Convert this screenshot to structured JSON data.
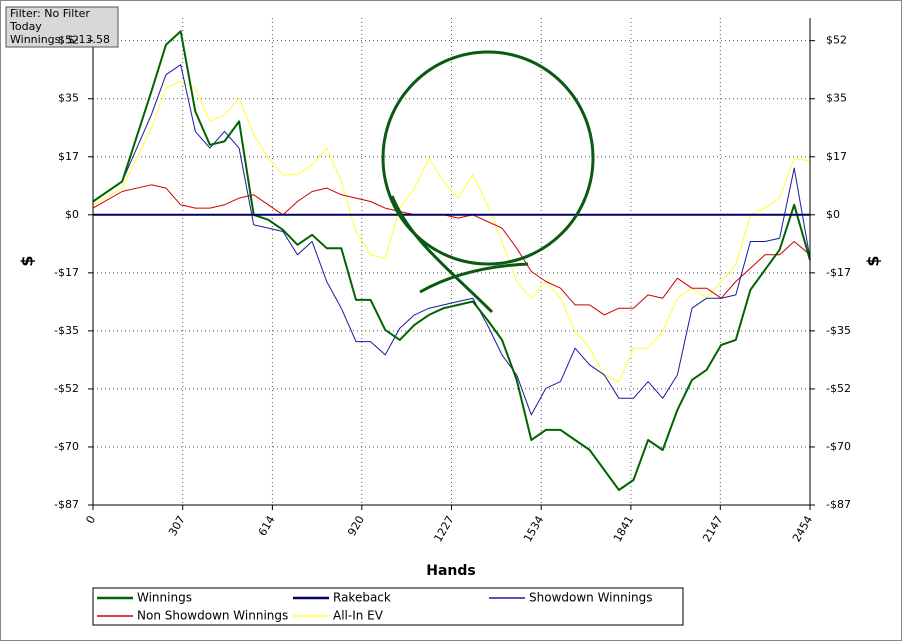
{
  "chart_data": {
    "type": "line",
    "info_box": [
      "Filter: No Filter",
      "Today",
      "Winnings: $-13.58"
    ],
    "x_label": "Hands",
    "y_label": "$",
    "x": [
      0,
      100,
      200,
      250,
      300,
      350,
      400,
      450,
      500,
      550,
      600,
      650,
      700,
      750,
      800,
      850,
      900,
      950,
      1000,
      1050,
      1100,
      1150,
      1200,
      1250,
      1300,
      1350,
      1400,
      1450,
      1500,
      1550,
      1600,
      1650,
      1700,
      1750,
      1800,
      1850,
      1900,
      1950,
      2000,
      2050,
      2100,
      2150,
      2200,
      2250,
      2300,
      2350,
      2400,
      2454
    ],
    "series": [
      {
        "name": "Winnings",
        "color": "#006400",
        "width": 2,
        "values": [
          4,
          10,
          37,
          51,
          55,
          31,
          21,
          22,
          28,
          0,
          -1.5,
          -4.5,
          -9,
          -6,
          -10,
          -10,
          -25.5,
          -25.5,
          -34.5,
          -37.5,
          -33,
          -30,
          -28,
          -27,
          -26,
          -31.5,
          -37.5,
          -49.5,
          -67.5,
          -64.5,
          -64.5,
          -67.5,
          -70.5,
          -76.5,
          -82.5,
          -79.5,
          -67.5,
          -70.5,
          -58.5,
          -49.5,
          -46.5,
          -39,
          -37.5,
          -22.5,
          -16.5,
          -10.5,
          3,
          -13.58
        ]
      },
      {
        "name": "Rakeback",
        "color": "#000066",
        "width": 2,
        "values": [
          0,
          0,
          0,
          0,
          0,
          0,
          0,
          0,
          0,
          0,
          0,
          0,
          0,
          0,
          0,
          0,
          0,
          0,
          0,
          0,
          0,
          0,
          0,
          0,
          0,
          0,
          0,
          0,
          0,
          0,
          0,
          0,
          0,
          0,
          0,
          0,
          0,
          0,
          0,
          0,
          0,
          0,
          0,
          0,
          0,
          0,
          0,
          0
        ]
      },
      {
        "name": "Showdown Winnings",
        "color": "#1a1aa0",
        "width": 1,
        "values": [
          4,
          10,
          30,
          42,
          45,
          25,
          20,
          25,
          20,
          -3,
          -4,
          -5,
          -12,
          -8,
          -20,
          -28,
          -38,
          -38,
          -42,
          -34,
          -30,
          -28,
          -27,
          -26,
          -25,
          -33,
          -42,
          -48,
          -60,
          -52,
          -50,
          -40,
          -45,
          -48,
          -55,
          -55,
          -50,
          -55,
          -48,
          -28,
          -25,
          -25,
          -24,
          -8,
          -8,
          -7,
          14,
          -13
        ]
      },
      {
        "name": "Non Showdown Winnings",
        "color": "#cc0000",
        "width": 1,
        "values": [
          2,
          7,
          9,
          8,
          3,
          2,
          2,
          3,
          5,
          6,
          3,
          0,
          4,
          7,
          8,
          6,
          5,
          4,
          2,
          1,
          0,
          0,
          0,
          -1,
          0,
          -2,
          -4,
          -10,
          -17,
          -20,
          -22,
          -27,
          -27,
          -30,
          -28,
          -28,
          -24,
          -25,
          -19,
          -22,
          -22,
          -25,
          -20,
          -16,
          -12,
          -12,
          -8,
          -12
        ]
      },
      {
        "name": "All-In EV",
        "color": "#ffff33",
        "width": 1,
        "values": [
          3,
          8,
          26,
          38,
          40,
          38,
          28,
          30,
          35,
          24,
          17,
          12,
          12,
          15,
          20,
          10,
          -5,
          -12,
          -13,
          2,
          8,
          17,
          10,
          5,
          12,
          3,
          -8,
          -20,
          -25,
          -20,
          -25,
          -35,
          -40,
          -48,
          -50,
          -40,
          -40,
          -35,
          -25,
          -22,
          -25,
          -20,
          -15,
          0,
          2,
          5,
          17,
          16
        ]
      }
    ],
    "xlim": [
      0,
      2454
    ],
    "xticks": [
      0,
      307,
      614,
      920,
      1227,
      1534,
      1841,
      2147,
      2454
    ],
    "ylim": [
      -87,
      59
    ],
    "yticks": [
      {
        "value": 52.2,
        "label": "$52"
      },
      {
        "value": 34.8,
        "label": "$35"
      },
      {
        "value": 17.4,
        "label": "$17"
      },
      {
        "value": 0,
        "label": "$0"
      },
      {
        "value": -17.4,
        "label": "-$17"
      },
      {
        "value": -34.8,
        "label": "-$35"
      },
      {
        "value": -52.2,
        "label": "-$52"
      },
      {
        "value": -69.6,
        "label": "-$70"
      },
      {
        "value": -87,
        "label": "-$87"
      }
    ],
    "grid": true
  }
}
